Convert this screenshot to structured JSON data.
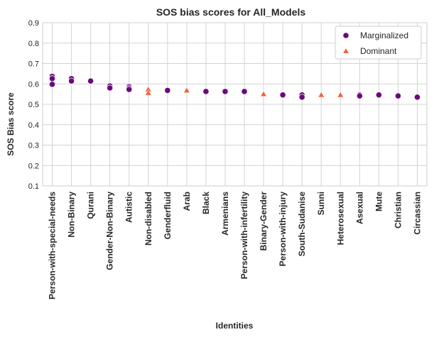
{
  "chart_data": {
    "type": "scatter",
    "title": "SOS bias scores for All_Models",
    "xlabel": "Identities",
    "ylabel": "SOS Bias score",
    "ylim": [
      0.1,
      0.9
    ],
    "yticks": [
      "0.1",
      "0.2",
      "0.3",
      "0.4",
      "0.5",
      "0.6",
      "0.7",
      "0.8",
      "0.9"
    ],
    "grid": true,
    "legend_position": "top-right",
    "categories": [
      "Person-with-special-needs",
      "Non-Binary",
      "Qurani",
      "Gender-Non-Binary",
      "Autistic",
      "Non-disabled",
      "Genderfluid",
      "Arab",
      "Black",
      "Armenians",
      "Person-with-infertility",
      "Binary-Gender",
      "Person-with-injury",
      "South-Sudanise",
      "Sunni",
      "Heterosexual",
      "Asexual",
      "Mute",
      "Christian",
      "Circassian"
    ],
    "series": [
      {
        "name": "Marginalized",
        "marker": "circle",
        "color": "#6a0a7a",
        "points": [
          {
            "x": "Person-with-special-needs",
            "y": 0.637
          },
          {
            "x": "Person-with-special-needs",
            "y": 0.626
          },
          {
            "x": "Person-with-special-needs",
            "y": 0.598
          },
          {
            "x": "Non-Binary",
            "y": 0.626
          },
          {
            "x": "Non-Binary",
            "y": 0.614
          },
          {
            "x": "Qurani",
            "y": 0.614
          },
          {
            "x": "Gender-Non-Binary",
            "y": 0.59
          },
          {
            "x": "Gender-Non-Binary",
            "y": 0.58
          },
          {
            "x": "Autistic",
            "y": 0.587
          },
          {
            "x": "Autistic",
            "y": 0.58
          },
          {
            "x": "Autistic",
            "y": 0.573
          },
          {
            "x": "Genderfluid",
            "y": 0.568
          },
          {
            "x": "Black",
            "y": 0.563
          },
          {
            "x": "Armenians",
            "y": 0.563
          },
          {
            "x": "Person-with-infertility",
            "y": 0.563
          },
          {
            "x": "Person-with-injury",
            "y": 0.546
          },
          {
            "x": "South-Sudanise",
            "y": 0.546
          },
          {
            "x": "South-Sudanise",
            "y": 0.535
          },
          {
            "x": "Asexual",
            "y": 0.546
          },
          {
            "x": "Asexual",
            "y": 0.541
          },
          {
            "x": "Mute",
            "y": 0.546
          },
          {
            "x": "Christian",
            "y": 0.541
          },
          {
            "x": "Circassian",
            "y": 0.535
          }
        ]
      },
      {
        "name": "Dominant",
        "marker": "triangle",
        "color": "#f4613a",
        "points": [
          {
            "x": "Non-disabled",
            "y": 0.573
          },
          {
            "x": "Non-disabled",
            "y": 0.556
          },
          {
            "x": "Arab",
            "y": 0.568
          },
          {
            "x": "Binary-Gender",
            "y": 0.55
          },
          {
            "x": "Sunni",
            "y": 0.546
          },
          {
            "x": "Heterosexual",
            "y": 0.546
          }
        ]
      }
    ]
  }
}
